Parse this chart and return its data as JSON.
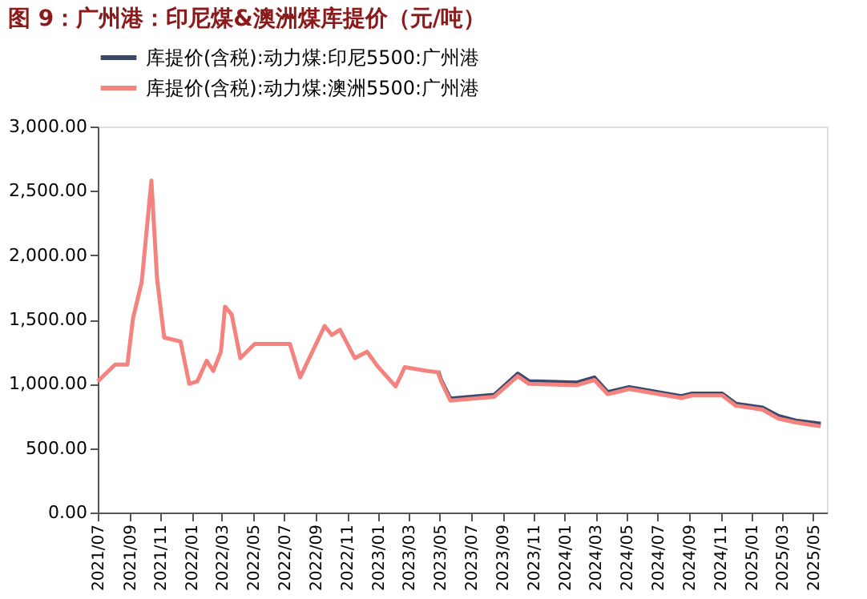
{
  "chart_data": {
    "type": "line",
    "title": "图 9：广州港：印尼煤&澳洲煤库提价（元/吨）",
    "x": [
      "2021-07-01",
      "2021-08-04",
      "2021-08-28",
      "2021-09-08",
      "2021-09-25",
      "2021-10-14",
      "2021-10-25",
      "2021-11-08",
      "2021-12-10",
      "2021-12-27",
      "2022-01-12",
      "2022-01-30",
      "2022-02-12",
      "2022-02-27",
      "2022-03-07",
      "2022-03-20",
      "2022-04-06",
      "2022-05-04",
      "2022-07-12",
      "2022-08-01",
      "2022-09-18",
      "2022-10-02",
      "2022-10-18",
      "2022-11-16",
      "2022-12-10",
      "2023-01-01",
      "2023-02-04",
      "2023-02-22",
      "2023-04-07",
      "2023-04-28",
      "2023-05-04",
      "2023-05-22",
      "2023-08-16",
      "2023-10-01",
      "2023-10-23",
      "2024-01-25",
      "2024-02-28",
      "2024-03-25",
      "2024-05-06",
      "2024-08-16",
      "2024-09-06",
      "2024-11-04",
      "2024-12-01",
      "2025-01-22",
      "2025-02-22",
      "2025-03-28",
      "2025-05-16"
    ],
    "series": [
      {
        "name": "库提价(含税):动力煤:印尼5500:广州港",
        "color": "#3b4a6b",
        "values": [
          null,
          null,
          null,
          null,
          null,
          null,
          null,
          null,
          null,
          null,
          null,
          null,
          null,
          null,
          null,
          null,
          null,
          null,
          null,
          null,
          null,
          null,
          null,
          null,
          null,
          null,
          null,
          null,
          null,
          1100,
          1030,
          885,
          915,
          1080,
          1020,
          1010,
          1050,
          935,
          975,
          905,
          925,
          925,
          845,
          815,
          750,
          715,
          690
        ]
      },
      {
        "name": "库提价(含税):动力煤:澳洲5500:广州港",
        "color": "#f4837f",
        "values": [
          1020,
          1150,
          1150,
          1510,
          1790,
          2580,
          1820,
          1360,
          1330,
          1000,
          1020,
          1180,
          1100,
          1250,
          1600,
          1540,
          1200,
          1310,
          1310,
          1050,
          1450,
          1380,
          1420,
          1200,
          1250,
          1130,
          980,
          1130,
          1100,
          1090,
          1020,
          870,
          900,
          1060,
          1000,
          990,
          1030,
          920,
          960,
          890,
          910,
          910,
          830,
          800,
          730,
          700,
          670
        ]
      }
    ],
    "ylim": [
      0,
      3000
    ],
    "yticks": [
      {
        "value": 0,
        "label": "0.00"
      },
      {
        "value": 500,
        "label": "500.00"
      },
      {
        "value": 1000,
        "label": "1,000.00"
      },
      {
        "value": 1500,
        "label": "1,500.00"
      },
      {
        "value": 2000,
        "label": "2,000.00"
      },
      {
        "value": 2500,
        "label": "2,500.00"
      },
      {
        "value": 3000,
        "label": "3,000.00"
      }
    ],
    "xlim": [
      "2021-07-01",
      "2025-05-28"
    ],
    "xticks": [
      {
        "value": "2021-07-01",
        "label": "2021/07"
      },
      {
        "value": "2021-09-01",
        "label": "2021/09"
      },
      {
        "value": "2021-11-01",
        "label": "2021/11"
      },
      {
        "value": "2022-01-01",
        "label": "2022/01"
      },
      {
        "value": "2022-03-01",
        "label": "2022/03"
      },
      {
        "value": "2022-05-01",
        "label": "2022/05"
      },
      {
        "value": "2022-07-01",
        "label": "2022/07"
      },
      {
        "value": "2022-09-01",
        "label": "2022/09"
      },
      {
        "value": "2022-11-01",
        "label": "2022/11"
      },
      {
        "value": "2023-01-01",
        "label": "2023/01"
      },
      {
        "value": "2023-03-01",
        "label": "2023/03"
      },
      {
        "value": "2023-05-01",
        "label": "2023/05"
      },
      {
        "value": "2023-07-01",
        "label": "2023/07"
      },
      {
        "value": "2023-09-01",
        "label": "2023/09"
      },
      {
        "value": "2023-11-01",
        "label": "2023/11"
      },
      {
        "value": "2024-01-01",
        "label": "2024/01"
      },
      {
        "value": "2024-03-01",
        "label": "2024/03"
      },
      {
        "value": "2024-05-01",
        "label": "2024/05"
      },
      {
        "value": "2024-07-01",
        "label": "2024/07"
      },
      {
        "value": "2024-09-01",
        "label": "2024/09"
      },
      {
        "value": "2024-11-01",
        "label": "2024/11"
      },
      {
        "value": "2025-01-01",
        "label": "2025/01"
      },
      {
        "value": "2025-03-01",
        "label": "2025/03"
      },
      {
        "value": "2025-05-01",
        "label": "2025/05"
      }
    ],
    "grid": false,
    "legend": "top",
    "marker": "none",
    "line_style": "solid"
  }
}
